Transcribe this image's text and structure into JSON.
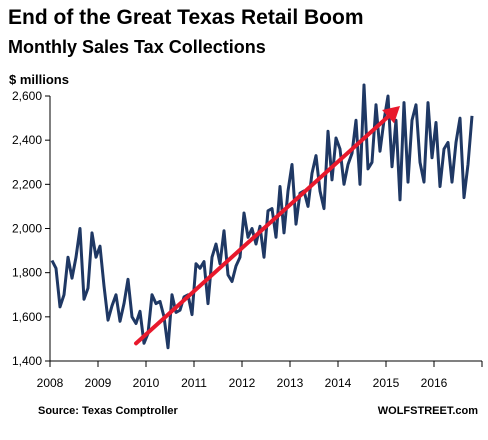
{
  "title": "End of the Great Texas Retail Boom",
  "subtitle": "Monthly Sales Tax Collections",
  "ylabel": "$ millions",
  "source": "Source: Texas Comptroller",
  "brand": "WOLFSTREET.com",
  "colors": {
    "series": "#1f3864",
    "trend_arrow": "#e8192c",
    "axis": "#000000",
    "gridline": "#c8c8c8"
  },
  "chart_data": {
    "type": "line",
    "title": "End of the Great Texas Retail Boom",
    "subtitle": "Monthly Sales Tax Collections",
    "xlabel": "",
    "ylabel": "$ millions",
    "xlim": [
      2008,
      2017
    ],
    "ylim": [
      1400,
      2600
    ],
    "yticks": [
      1400,
      1600,
      1800,
      2000,
      2200,
      2400,
      2600
    ],
    "ytick_labels": [
      "1,400",
      "1,600",
      "1,800",
      "2,000",
      "2,200",
      "2,400",
      "2,600"
    ],
    "xticks": [
      2008,
      2009,
      2010,
      2011,
      2012,
      2013,
      2014,
      2015,
      2016
    ],
    "xtick_labels": [
      "2008",
      "2009",
      "2010",
      "2011",
      "2012",
      "2013",
      "2014",
      "2015",
      "2016"
    ],
    "grid": false,
    "legend": "none",
    "series": [
      {
        "start": "2008-01",
        "frequency": "monthly",
        "values": [
          1855,
          1820,
          1645,
          1700,
          1870,
          1775,
          1870,
          2000,
          1680,
          1730,
          1980,
          1870,
          1920,
          1740,
          1585,
          1650,
          1700,
          1580,
          1660,
          1770,
          1600,
          1570,
          1625,
          1480,
          1525,
          1700,
          1660,
          1670,
          1600,
          1460,
          1700,
          1620,
          1630,
          1690,
          1700,
          1610,
          1840,
          1820,
          1850,
          1660,
          1870,
          1930,
          1840,
          1990,
          1790,
          1760,
          1830,
          1870,
          2070,
          1960,
          2000,
          1930,
          2010,
          1870,
          2080,
          2090,
          1960,
          2190,
          1980,
          2170,
          2290,
          2020,
          2160,
          2170,
          2100,
          2250,
          2330,
          2170,
          2090,
          2440,
          2220,
          2410,
          2360,
          2200,
          2290,
          2340,
          2490,
          2200,
          2650,
          2270,
          2300,
          2560,
          2350,
          2490,
          2600,
          2280,
          2490,
          2130,
          2570,
          2210,
          2490,
          2560,
          2300,
          2210,
          2570,
          2320,
          2480,
          2190,
          2360,
          2390,
          2210,
          2390,
          2500,
          2140,
          2290,
          2510
        ]
      }
    ],
    "annotations": [
      {
        "type": "trend_arrow",
        "from": {
          "x": "2009-10",
          "y": 1480
        },
        "to": {
          "x": "2015-04",
          "y": 2555
        }
      }
    ]
  }
}
